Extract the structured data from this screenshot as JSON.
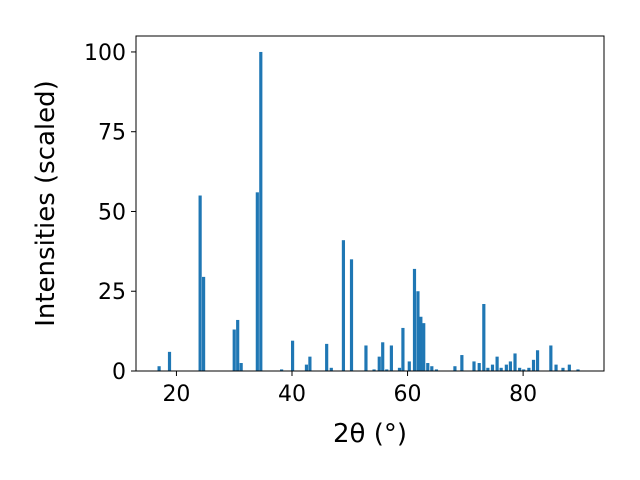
{
  "chart_data": {
    "type": "bar",
    "xlabel": "2θ (°)",
    "ylabel": "Intensities (scaled)",
    "xlim": [
      13,
      94
    ],
    "ylim": [
      0,
      105
    ],
    "xticks": [
      "20",
      "40",
      "60",
      "80"
    ],
    "yticks": [
      "0",
      "25",
      "50",
      "75",
      "100"
    ],
    "bar_color": "#1f77b4",
    "grid": false,
    "series": [
      {
        "x": [
          17.0,
          18.8,
          24.1,
          24.7,
          30.0,
          30.6,
          31.2,
          34.0,
          34.6,
          38.2,
          40.1,
          42.5,
          43.1,
          46.0,
          46.8,
          48.9,
          50.3,
          52.8,
          54.2,
          55.1,
          55.7,
          56.4,
          57.2,
          58.6,
          59.2,
          60.3,
          61.2,
          61.8,
          62.3,
          62.8,
          63.5,
          64.2,
          65.0,
          68.2,
          69.4,
          71.5,
          72.4,
          73.2,
          73.9,
          74.7,
          75.5,
          76.2,
          77.1,
          77.8,
          78.6,
          79.4,
          80.1,
          81.0,
          81.8,
          82.5,
          84.8,
          85.7,
          86.9,
          88.0,
          89.5
        ],
        "y": [
          1.5,
          6,
          55,
          29.5,
          13,
          16,
          2.5,
          56,
          100,
          0.5,
          9.5,
          2,
          4.5,
          8.5,
          1,
          41,
          35,
          8,
          0.5,
          4.5,
          9,
          0.5,
          8,
          1,
          13.5,
          3,
          32,
          25,
          17,
          15,
          2.5,
          1.5,
          0.5,
          1.5,
          5,
          3,
          2.5,
          21,
          1,
          2,
          4.5,
          1,
          2,
          3,
          5.5,
          1,
          0.5,
          1,
          3.5,
          6.5,
          8,
          2,
          1,
          2,
          0.5
        ]
      }
    ]
  }
}
